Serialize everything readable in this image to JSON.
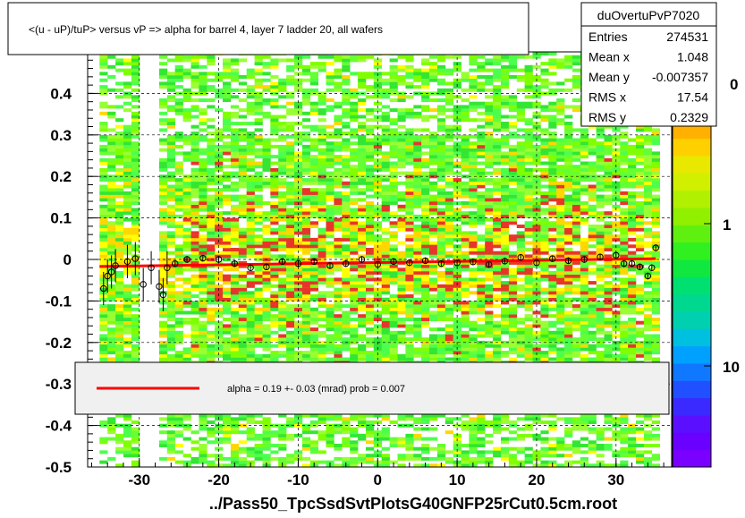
{
  "title": "<(u - uP)/tuP> versus   vP => alpha for barrel 4, layer 7 ladder 20, all wafers",
  "footer": "../Pass50_TpcSsdSvtPlotsG40GNFP25rCut0.5cm.root",
  "stats": {
    "name": "duOvertuPvP7020",
    "rows": [
      {
        "label": "Entries",
        "value": "274531"
      },
      {
        "label": "Mean x",
        "value": "1.048"
      },
      {
        "label": "Mean y",
        "value": "-0.007357"
      },
      {
        "label": "RMS x",
        "value": "17.54"
      },
      {
        "label": "RMS y",
        "value": "0.2329"
      }
    ]
  },
  "fit_legend": "alpha =    0.19 +-  0.03 (mrad) prob = 0.007",
  "colors": {
    "fit_line": "#ff0000",
    "legend_bg": "#f0f0f0",
    "heat_low": "#7fff00",
    "heat_mid": "#ffd700",
    "heat_high": "#e8352a"
  },
  "chart_data": {
    "type": "heatmap",
    "title": "<(u - uP)/tuP> versus   vP => alpha for barrel 4, layer 7 ladder 20, all wafers",
    "xlabel": "",
    "ylabel": "",
    "xlim": [
      -36.5,
      37
    ],
    "ylim": [
      -0.5,
      0.5
    ],
    "x_ticks": [
      -30,
      -20,
      -10,
      0,
      10,
      20,
      30
    ],
    "x_tick_labels": [
      "-30",
      "-20",
      "-10",
      "0",
      "10",
      "20",
      "30"
    ],
    "y_ticks": [
      -0.5,
      -0.4,
      -0.3,
      -0.2,
      -0.1,
      0,
      0.1,
      0.2,
      0.3,
      0.4
    ],
    "y_tick_labels": [
      "-0.5",
      "-0.4",
      "-0.3",
      "-0.2",
      "-0.1",
      "0",
      "0.1",
      "0.2",
      "0.3",
      "0.4"
    ],
    "grid": true,
    "color_scale": {
      "type": "log",
      "labels": [
        "1",
        "10"
      ],
      "label_values": [
        1,
        10
      ],
      "top_label_partial": "0"
    },
    "filled_x_ranges": [
      [
        -35,
        -30
      ],
      [
        -27.5,
        35
      ]
    ],
    "fit": {
      "type": "line",
      "x": [
        -35,
        35
      ],
      "y": [
        -0.017,
        0.002
      ],
      "label": "alpha =    0.19 +-  0.03 (mrad) prob = 0.007"
    },
    "profile_points": [
      {
        "x": -34.5,
        "y": -0.07
      },
      {
        "x": -34,
        "y": -0.04
      },
      {
        "x": -33.5,
        "y": -0.03
      },
      {
        "x": -33,
        "y": -0.015
      },
      {
        "x": -31.5,
        "y": -0.005
      },
      {
        "x": -30.5,
        "y": 0.002
      },
      {
        "x": -29.5,
        "y": -0.06
      },
      {
        "x": -28.5,
        "y": -0.02
      },
      {
        "x": -27.5,
        "y": -0.065
      },
      {
        "x": -27,
        "y": -0.085
      },
      {
        "x": -26.5,
        "y": -0.02
      },
      {
        "x": -25.5,
        "y": -0.01
      },
      {
        "x": -24,
        "y": 0
      },
      {
        "x": -22,
        "y": 0.003
      },
      {
        "x": -20,
        "y": 0
      },
      {
        "x": -18,
        "y": -0.01
      },
      {
        "x": -16,
        "y": -0.02
      },
      {
        "x": -14,
        "y": -0.018
      },
      {
        "x": -12,
        "y": -0.005
      },
      {
        "x": -10,
        "y": -0.01
      },
      {
        "x": -8,
        "y": -0.005
      },
      {
        "x": -6,
        "y": -0.015
      },
      {
        "x": -4,
        "y": -0.01
      },
      {
        "x": -2,
        "y": 0
      },
      {
        "x": 0,
        "y": -0.012
      },
      {
        "x": 2,
        "y": -0.005
      },
      {
        "x": 4,
        "y": -0.008
      },
      {
        "x": 6,
        "y": -0.003
      },
      {
        "x": 8,
        "y": -0.01
      },
      {
        "x": 10,
        "y": -0.008
      },
      {
        "x": 12,
        "y": -0.006
      },
      {
        "x": 14,
        "y": -0.012
      },
      {
        "x": 16,
        "y": -0.004
      },
      {
        "x": 18,
        "y": 0.005
      },
      {
        "x": 20,
        "y": -0.008
      },
      {
        "x": 22,
        "y": 0.002
      },
      {
        "x": 24,
        "y": -0.003
      },
      {
        "x": 26,
        "y": 0
      },
      {
        "x": 28,
        "y": 0.006
      },
      {
        "x": 30,
        "y": 0.01
      },
      {
        "x": 31,
        "y": -0.01
      },
      {
        "x": 32,
        "y": -0.01
      },
      {
        "x": 33,
        "y": -0.018
      },
      {
        "x": 34,
        "y": -0.04
      },
      {
        "x": 34.5,
        "y": -0.02
      },
      {
        "x": 35,
        "y": 0.028
      }
    ]
  }
}
